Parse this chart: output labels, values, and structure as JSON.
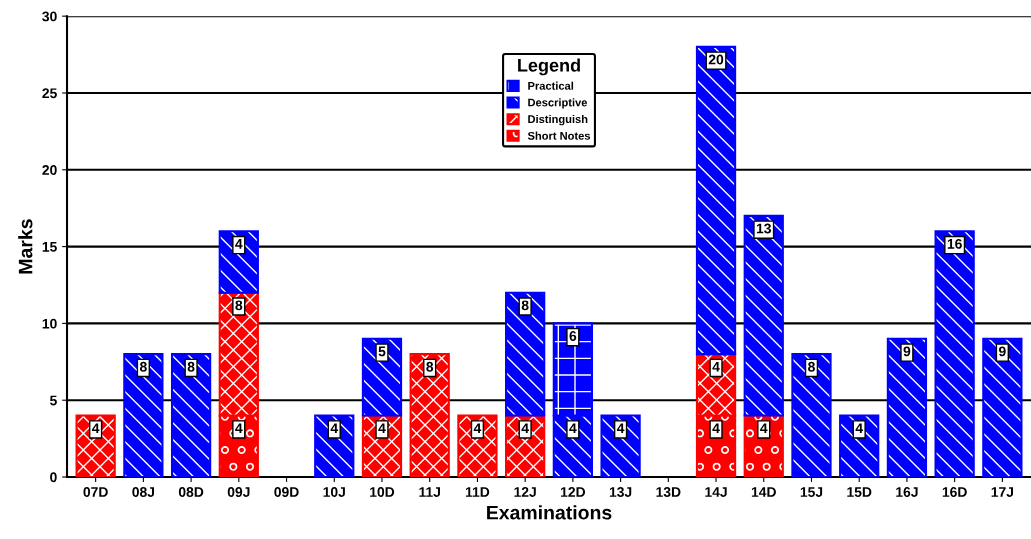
{
  "chart_data": {
    "type": "bar",
    "stacked": true,
    "xlabel": "Examinations",
    "ylabel": "Marks",
    "categories": [
      "07D",
      "08J",
      "08D",
      "09J",
      "09D",
      "10J",
      "10D",
      "11J",
      "11D",
      "12J",
      "12D",
      "13J",
      "13D",
      "14J",
      "14D",
      "15J",
      "15D",
      "16J",
      "16D",
      "17J"
    ],
    "series": [
      {
        "name": "Short Notes",
        "color": "#ff0000",
        "values": [
          null,
          null,
          null,
          4,
          null,
          null,
          null,
          null,
          null,
          null,
          null,
          null,
          null,
          4,
          4,
          null,
          null,
          null,
          null,
          null
        ]
      },
      {
        "name": "Distinguish",
        "color": "#ff0000",
        "values": [
          4,
          null,
          null,
          8,
          null,
          null,
          4,
          8,
          4,
          4,
          null,
          null,
          null,
          4,
          null,
          null,
          null,
          null,
          null,
          null
        ]
      },
      {
        "name": "Descriptive",
        "color": "#0000ff",
        "values": [
          null,
          8,
          8,
          4,
          null,
          4,
          5,
          null,
          null,
          8,
          4,
          4,
          null,
          20,
          13,
          8,
          4,
          9,
          16,
          9
        ]
      },
      {
        "name": "Practical",
        "color": "#0000ff",
        "values": [
          null,
          null,
          null,
          null,
          null,
          null,
          null,
          null,
          null,
          null,
          6,
          null,
          null,
          null,
          null,
          null,
          null,
          null,
          null,
          null
        ]
      }
    ],
    "legend_title": "Legend",
    "legend": "top",
    "ylim": [
      0,
      30
    ],
    "yticks": [
      0,
      5,
      10,
      15,
      20,
      25,
      30
    ],
    "grid": "y",
    "data_labels": true
  }
}
